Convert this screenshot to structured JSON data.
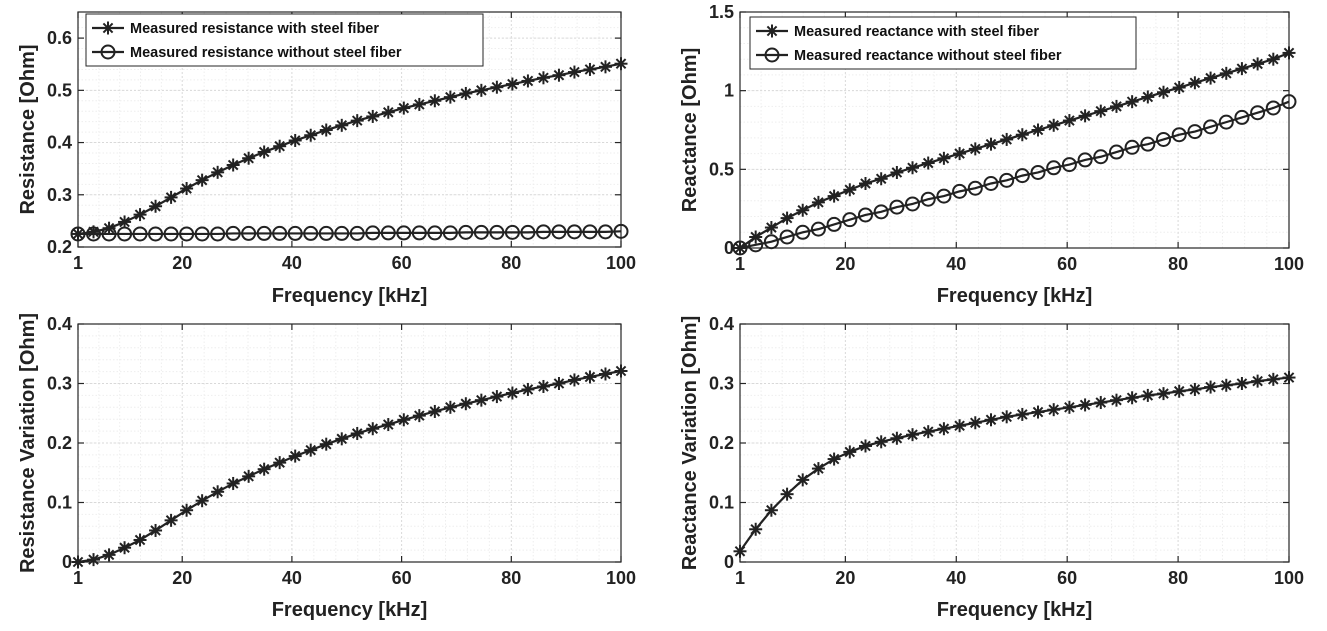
{
  "colors": {
    "line": "#222222",
    "grid_major": "#d9d9d9",
    "grid_minor": "#eeeeee",
    "axis": "#262626",
    "background": "#ffffff"
  },
  "chart_data": [
    {
      "type": "line",
      "xlabel": "Frequency  [kHz]",
      "ylabel": "Resistance  [Ohm]",
      "xlim": [
        1,
        100
      ],
      "ylim": [
        0.2,
        0.65
      ],
      "xticks": [
        1,
        20,
        40,
        60,
        80,
        100
      ],
      "yticks": [
        0.2,
        0.3,
        0.4,
        0.5,
        0.6
      ],
      "ytick_labels": [
        "0.2",
        "0.3",
        "0.4",
        "0.5",
        "0.6"
      ],
      "grid": "major and minor",
      "legend_position": "top-left",
      "x": [
        1,
        3.83,
        6.66,
        9.49,
        12.31,
        15.14,
        17.97,
        20.8,
        23.63,
        26.46,
        29.29,
        32.11,
        34.94,
        37.77,
        40.6,
        43.43,
        46.26,
        49.09,
        51.91,
        54.74,
        57.57,
        60.4,
        63.23,
        66.06,
        68.89,
        71.71,
        74.54,
        77.37,
        80.2,
        83.03,
        85.86,
        88.69,
        91.51,
        94.34,
        97.17,
        100
      ],
      "series": [
        {
          "name": "Measured resistance with steel fiber",
          "marker": "asterisk",
          "values": [
            0.225,
            0.229,
            0.236,
            0.248,
            0.262,
            0.278,
            0.295,
            0.312,
            0.328,
            0.343,
            0.357,
            0.37,
            0.382,
            0.393,
            0.404,
            0.414,
            0.424,
            0.433,
            0.442,
            0.45,
            0.458,
            0.466,
            0.473,
            0.48,
            0.487,
            0.494,
            0.5,
            0.506,
            0.512,
            0.518,
            0.524,
            0.529,
            0.535,
            0.54,
            0.545,
            0.551
          ]
        },
        {
          "name": "Measured resistance without steel fiber",
          "marker": "circle",
          "values": [
            0.225,
            0.225,
            0.225,
            0.225,
            0.225,
            0.225,
            0.225,
            0.225,
            0.225,
            0.225,
            0.226,
            0.226,
            0.226,
            0.226,
            0.226,
            0.226,
            0.226,
            0.226,
            0.226,
            0.227,
            0.227,
            0.227,
            0.227,
            0.227,
            0.227,
            0.228,
            0.228,
            0.228,
            0.228,
            0.228,
            0.229,
            0.229,
            0.229,
            0.229,
            0.229,
            0.23
          ]
        }
      ]
    },
    {
      "type": "line",
      "xlabel": "Frequency  [kHz]",
      "ylabel": "Reactance  [Ohm]",
      "xlim": [
        1,
        100
      ],
      "ylim": [
        0,
        1.5
      ],
      "xticks": [
        1,
        20,
        40,
        60,
        80,
        100
      ],
      "yticks": [
        0,
        0.5,
        1,
        1.5
      ],
      "ytick_labels": [
        "0",
        "0.5",
        "1",
        "1.5"
      ],
      "grid": "major and minor",
      "legend_position": "top-left",
      "x": [
        1,
        3.83,
        6.66,
        9.49,
        12.31,
        15.14,
        17.97,
        20.8,
        23.63,
        26.46,
        29.29,
        32.11,
        34.94,
        37.77,
        40.6,
        43.43,
        46.26,
        49.09,
        51.91,
        54.74,
        57.57,
        60.4,
        63.23,
        66.06,
        68.89,
        71.71,
        74.54,
        77.37,
        80.2,
        83.03,
        85.86,
        88.69,
        91.51,
        94.34,
        97.17,
        100
      ],
      "series": [
        {
          "name": "Measured reactance with steel fiber",
          "marker": "asterisk",
          "values": [
            0.0,
            0.07,
            0.13,
            0.19,
            0.24,
            0.29,
            0.33,
            0.37,
            0.41,
            0.44,
            0.48,
            0.51,
            0.54,
            0.57,
            0.6,
            0.63,
            0.66,
            0.69,
            0.72,
            0.75,
            0.78,
            0.81,
            0.84,
            0.87,
            0.9,
            0.93,
            0.96,
            0.99,
            1.02,
            1.05,
            1.08,
            1.11,
            1.14,
            1.17,
            1.2,
            1.24
          ]
        },
        {
          "name": "Measured reactance without steel fiber",
          "marker": "circle",
          "values": [
            0.0,
            0.02,
            0.04,
            0.07,
            0.1,
            0.12,
            0.15,
            0.18,
            0.21,
            0.23,
            0.26,
            0.28,
            0.31,
            0.33,
            0.36,
            0.38,
            0.41,
            0.43,
            0.46,
            0.48,
            0.51,
            0.53,
            0.56,
            0.58,
            0.61,
            0.64,
            0.66,
            0.69,
            0.72,
            0.74,
            0.77,
            0.8,
            0.83,
            0.86,
            0.89,
            0.93
          ]
        }
      ]
    },
    {
      "type": "line",
      "xlabel": "Frequency  [kHz]",
      "ylabel": "Resistance Variation  [Ohm]",
      "xlim": [
        1,
        100
      ],
      "ylim": [
        0,
        0.4
      ],
      "xticks": [
        1,
        20,
        40,
        60,
        80,
        100
      ],
      "yticks": [
        0,
        0.1,
        0.2,
        0.3,
        0.4
      ],
      "ytick_labels": [
        "0",
        "0.1",
        "0.2",
        "0.3",
        "0.4"
      ],
      "grid": "major and minor",
      "x": [
        1,
        3.83,
        6.66,
        9.49,
        12.31,
        15.14,
        17.97,
        20.8,
        23.63,
        26.46,
        29.29,
        32.11,
        34.94,
        37.77,
        40.6,
        43.43,
        46.26,
        49.09,
        51.91,
        54.74,
        57.57,
        60.4,
        63.23,
        66.06,
        68.89,
        71.71,
        74.54,
        77.37,
        80.2,
        83.03,
        85.86,
        88.69,
        91.51,
        94.34,
        97.17,
        100
      ],
      "series": [
        {
          "marker": "asterisk",
          "values": [
            0.0,
            0.004,
            0.012,
            0.024,
            0.037,
            0.053,
            0.07,
            0.087,
            0.103,
            0.118,
            0.132,
            0.144,
            0.156,
            0.167,
            0.178,
            0.188,
            0.198,
            0.207,
            0.216,
            0.224,
            0.231,
            0.239,
            0.246,
            0.253,
            0.26,
            0.266,
            0.272,
            0.278,
            0.284,
            0.29,
            0.295,
            0.3,
            0.306,
            0.311,
            0.316,
            0.321
          ]
        }
      ]
    },
    {
      "type": "line",
      "xlabel": "Frequency  [kHz]",
      "ylabel": "Reactance Variation  [Ohm]",
      "xlim": [
        1,
        100
      ],
      "ylim": [
        0,
        0.4
      ],
      "xticks": [
        1,
        20,
        40,
        60,
        80,
        100
      ],
      "yticks": [
        0,
        0.1,
        0.2,
        0.3,
        0.4
      ],
      "ytick_labels": [
        "0",
        "0.1",
        "0.2",
        "0.3",
        "0.4"
      ],
      "grid": "major and minor",
      "x": [
        1,
        3.83,
        6.66,
        9.49,
        12.31,
        15.14,
        17.97,
        20.8,
        23.63,
        26.46,
        29.29,
        32.11,
        34.94,
        37.77,
        40.6,
        43.43,
        46.26,
        49.09,
        51.91,
        54.74,
        57.57,
        60.4,
        63.23,
        66.06,
        68.89,
        71.71,
        74.54,
        77.37,
        80.2,
        83.03,
        85.86,
        88.69,
        91.51,
        94.34,
        97.17,
        100
      ],
      "series": [
        {
          "marker": "asterisk",
          "values": [
            0.018,
            0.055,
            0.087,
            0.114,
            0.138,
            0.157,
            0.173,
            0.185,
            0.195,
            0.202,
            0.208,
            0.214,
            0.219,
            0.224,
            0.229,
            0.234,
            0.239,
            0.244,
            0.248,
            0.252,
            0.256,
            0.26,
            0.264,
            0.268,
            0.272,
            0.276,
            0.28,
            0.283,
            0.287,
            0.29,
            0.294,
            0.297,
            0.3,
            0.304,
            0.307,
            0.31
          ]
        }
      ]
    }
  ]
}
